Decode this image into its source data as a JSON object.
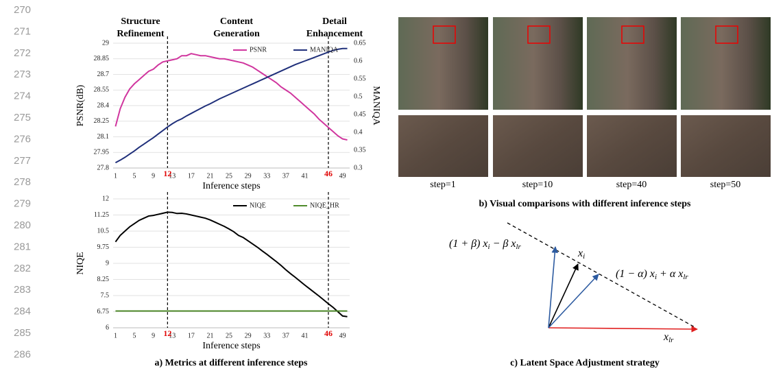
{
  "line_numbers": [
    "270",
    "271",
    "272",
    "273",
    "274",
    "275",
    "276",
    "277",
    "278",
    "279",
    "280",
    "281",
    "282",
    "283",
    "284",
    "285",
    "286"
  ],
  "chart_data": [
    {
      "type": "line",
      "phases": [
        [
          "Structure",
          "Refinement"
        ],
        [
          "Content",
          "Generation"
        ],
        [
          "Detail",
          "Enhancement"
        ]
      ],
      "xlabel": "Inference steps",
      "ylabel": "PSNR(dB)",
      "y2label": "MANIQA",
      "x": [
        1,
        2,
        3,
        4,
        5,
        6,
        7,
        8,
        9,
        10,
        11,
        12,
        13,
        14,
        15,
        16,
        17,
        18,
        19,
        20,
        21,
        22,
        23,
        24,
        25,
        26,
        27,
        28,
        29,
        30,
        31,
        32,
        33,
        34,
        35,
        36,
        37,
        38,
        39,
        40,
        41,
        42,
        43,
        44,
        45,
        46,
        47,
        48,
        49,
        50
      ],
      "xlim": [
        0.5,
        50.5
      ],
      "xticks": [
        1,
        5,
        9,
        13,
        17,
        21,
        25,
        29,
        33,
        37,
        41,
        49
      ],
      "vlines": [
        12,
        46
      ],
      "ylim": [
        27.8,
        29
      ],
      "yticks": [
        27.8,
        27.95,
        28.1,
        28.25,
        28.4,
        28.55,
        28.7,
        28.85,
        29
      ],
      "y2lim": [
        0.3,
        0.65
      ],
      "y2ticks": [
        0.3,
        0.35,
        0.4,
        0.45,
        0.5,
        0.55,
        0.6,
        0.65
      ],
      "grid": true,
      "legend": "top",
      "series": [
        {
          "name": "PSNR",
          "color": "#d0359e",
          "values": [
            28.2,
            28.37,
            28.48,
            28.56,
            28.61,
            28.65,
            28.69,
            28.73,
            28.75,
            28.79,
            28.82,
            28.83,
            28.84,
            28.85,
            28.88,
            28.88,
            28.9,
            28.89,
            28.88,
            28.88,
            28.87,
            28.86,
            28.85,
            28.85,
            28.84,
            28.83,
            28.82,
            28.81,
            28.79,
            28.77,
            28.74,
            28.71,
            28.68,
            28.65,
            28.62,
            28.58,
            28.55,
            28.52,
            28.48,
            28.44,
            28.4,
            28.36,
            28.32,
            28.27,
            28.23,
            28.19,
            28.15,
            28.11,
            28.08,
            28.07
          ]
        },
        {
          "name": "MANIQA",
          "color": "#1f2f7a",
          "axis": "y2",
          "values": [
            0.315,
            0.322,
            0.33,
            0.339,
            0.348,
            0.358,
            0.367,
            0.376,
            0.385,
            0.395,
            0.405,
            0.415,
            0.424,
            0.432,
            0.438,
            0.446,
            0.453,
            0.46,
            0.467,
            0.474,
            0.48,
            0.487,
            0.494,
            0.5,
            0.506,
            0.512,
            0.518,
            0.524,
            0.53,
            0.536,
            0.542,
            0.548,
            0.554,
            0.56,
            0.566,
            0.572,
            0.578,
            0.584,
            0.59,
            0.595,
            0.6,
            0.605,
            0.61,
            0.615,
            0.62,
            0.625,
            0.63,
            0.633,
            0.635,
            0.635
          ]
        }
      ]
    },
    {
      "type": "line",
      "xlabel": "Inference steps",
      "ylabel": "NIQE",
      "x": [
        1,
        2,
        3,
        4,
        5,
        6,
        7,
        8,
        9,
        10,
        11,
        12,
        13,
        14,
        15,
        16,
        17,
        18,
        19,
        20,
        21,
        22,
        23,
        24,
        25,
        26,
        27,
        28,
        29,
        30,
        31,
        32,
        33,
        34,
        35,
        36,
        37,
        38,
        39,
        40,
        41,
        42,
        43,
        44,
        45,
        46,
        47,
        48,
        49,
        50
      ],
      "xlim": [
        0.5,
        50.5
      ],
      "xticks": [
        1,
        5,
        9,
        13,
        17,
        21,
        25,
        29,
        33,
        37,
        41,
        49
      ],
      "vlines": [
        12,
        46
      ],
      "ylim": [
        6,
        12
      ],
      "yticks": [
        6,
        6.75,
        7.5,
        8.25,
        9,
        9.75,
        10.5,
        11.25,
        12
      ],
      "grid": true,
      "legend": "top",
      "series": [
        {
          "name": "NIQE",
          "color": "#000000",
          "values": [
            10.0,
            10.3,
            10.5,
            10.7,
            10.85,
            11.0,
            11.1,
            11.2,
            11.23,
            11.28,
            11.33,
            11.38,
            11.37,
            11.32,
            11.33,
            11.3,
            11.25,
            11.2,
            11.15,
            11.1,
            11.02,
            10.92,
            10.82,
            10.72,
            10.6,
            10.47,
            10.3,
            10.2,
            10.05,
            9.9,
            9.75,
            9.58,
            9.42,
            9.25,
            9.08,
            8.9,
            8.7,
            8.52,
            8.35,
            8.17,
            7.99,
            7.82,
            7.65,
            7.48,
            7.3,
            7.12,
            6.95,
            6.75,
            6.55,
            6.52
          ]
        },
        {
          "name": "NIQE_HR",
          "color": "#4e8a2a",
          "values": [
            6.78,
            6.78,
            6.78,
            6.78,
            6.78,
            6.78,
            6.78,
            6.78,
            6.78,
            6.78,
            6.78,
            6.78,
            6.78,
            6.78,
            6.78,
            6.78,
            6.78,
            6.78,
            6.78,
            6.78,
            6.78,
            6.78,
            6.78,
            6.78,
            6.78,
            6.78,
            6.78,
            6.78,
            6.78,
            6.78,
            6.78,
            6.78,
            6.78,
            6.78,
            6.78,
            6.78,
            6.78,
            6.78,
            6.78,
            6.78,
            6.78,
            6.78,
            6.78,
            6.78,
            6.78,
            6.78,
            6.78,
            6.78,
            6.78,
            6.78
          ]
        }
      ]
    }
  ],
  "caption_a": "a) Metrics at different inference steps",
  "panel_b": {
    "step_labels": [
      "step=1",
      "step=10",
      "step=40",
      "step=50"
    ],
    "caption": "b) Visual comparisons with different inference steps"
  },
  "panel_c": {
    "upper": "(1 + β) x",
    "upper_i": "i",
    "upper_mid": " − β x",
    "upper_lr": "lr",
    "xi": "x",
    "xi_sub": "i",
    "lower": "(1 − α) x",
    "lower_i": "i",
    "lower_mid": " + α x",
    "lower_lr": "lr",
    "xlr": "x",
    "xlr_sub": "lr",
    "caption": "c) Latent Space Adjustment strategy"
  }
}
